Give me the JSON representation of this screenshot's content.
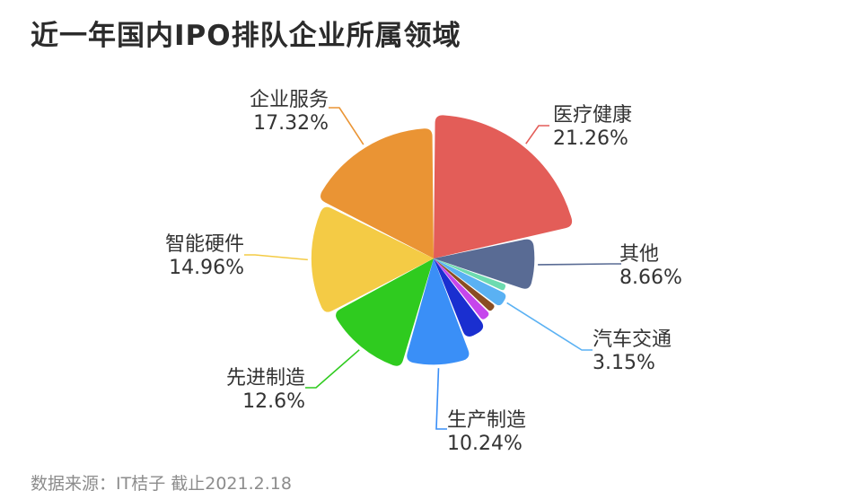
{
  "title": "近一年国内IPO排队企业所属领域",
  "source": "数据来源：IT桔子 截止2021.2.18",
  "chart_data": {
    "type": "pie",
    "subtype": "nightingale-rose",
    "title": "近一年国内IPO排队企业所属领域",
    "series": [
      {
        "name": "医疗健康",
        "value": 21.26,
        "label": "21.26%",
        "color": "#e35d58"
      },
      {
        "name": "其他",
        "value": 8.66,
        "label": "8.66%",
        "color": "#596b94"
      },
      {
        "name": "",
        "value": 1.7,
        "color": "#6ddbb0"
      },
      {
        "name": "汽车交通",
        "value": 3.15,
        "label": "3.15%",
        "color": "#5ab1f3"
      },
      {
        "name": "",
        "value": 1.9,
        "color": "#8a4d22"
      },
      {
        "name": "",
        "value": 2.3,
        "color": "#c646ec"
      },
      {
        "name": "",
        "value": 4.5,
        "color": "#1a2fd0"
      },
      {
        "name": "生产制造",
        "value": 10.24,
        "label": "10.24%",
        "color": "#3a8ff7"
      },
      {
        "name": "先进制造",
        "value": 12.6,
        "label": "12.6%",
        "color": "#2fcb1f"
      },
      {
        "name": "智能硬件",
        "value": 14.96,
        "label": "14.96%",
        "color": "#f4cb45"
      },
      {
        "name": "企业服务",
        "value": 17.32,
        "label": "17.32%",
        "color": "#ea9434"
      }
    ]
  }
}
